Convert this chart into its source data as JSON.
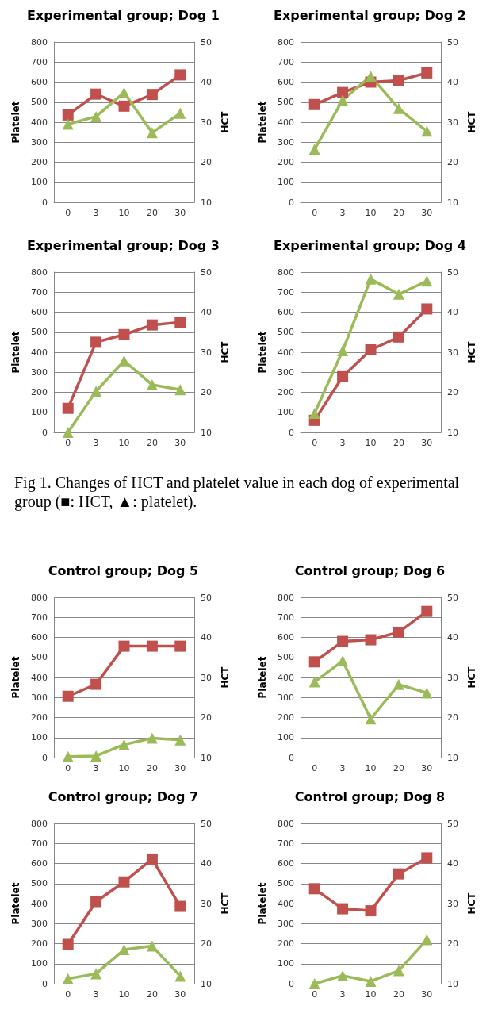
{
  "chart_data": [
    {
      "type": "line",
      "title": "Experimental group; Dog 1",
      "ylabel": "Platelet",
      "y2label": "HCT",
      "categories": [
        "0",
        "3",
        "10",
        "20",
        "30"
      ],
      "ylim": [
        0,
        800
      ],
      "yticks": [
        0,
        100,
        200,
        300,
        400,
        500,
        600,
        700,
        800
      ],
      "y2lim": [
        10,
        50
      ],
      "y2ticks": [
        10,
        20,
        30,
        40,
        50
      ],
      "grid": "y",
      "series": [
        {
          "color": "#c0504d",
          "axis": "y2",
          "marker": "square",
          "values": [
            31.8,
            37,
            34,
            36.9,
            41.8
          ]
        },
        {
          "color": "#9bbb59",
          "marker": "triangle",
          "values": [
            390,
            428,
            548,
            348,
            445
          ]
        }
      ]
    },
    {
      "type": "line",
      "title": "Experimental group; Dog 2",
      "ylabel": "Platelet",
      "y2label": "HCT",
      "categories": [
        "0",
        "3",
        "10",
        "20",
        "30"
      ],
      "ylim": [
        0,
        800
      ],
      "yticks": [
        0,
        100,
        200,
        300,
        400,
        500,
        600,
        700,
        800
      ],
      "y2lim": [
        10,
        50
      ],
      "y2ticks": [
        10,
        20,
        30,
        40,
        50
      ],
      "grid": "y",
      "series": [
        {
          "color": "#c0504d",
          "axis": "y2",
          "marker": "square",
          "values": [
            34.4,
            37.4,
            40,
            40.4,
            42.3
          ]
        },
        {
          "color": "#9bbb59",
          "marker": "triangle",
          "values": [
            265,
            510,
            630,
            468,
            355
          ]
        }
      ]
    },
    {
      "type": "line",
      "title": "Experimental group; Dog 3",
      "ylabel": "Platelet",
      "y2label": "HCT",
      "categories": [
        "0",
        "3",
        "10",
        "20",
        "30"
      ],
      "ylim": [
        0,
        800
      ],
      "yticks": [
        0,
        100,
        200,
        300,
        400,
        500,
        600,
        700,
        800
      ],
      "y2lim": [
        10,
        50
      ],
      "y2ticks": [
        10,
        20,
        30,
        40,
        50
      ],
      "grid": "y",
      "series": [
        {
          "color": "#c0504d",
          "axis": "y2",
          "marker": "square",
          "values": [
            16,
            32.5,
            34.4,
            36.8,
            37.5
          ]
        },
        {
          "color": "#9bbb59",
          "marker": "triangle",
          "values": [
            0,
            205,
            357,
            238,
            213
          ]
        }
      ]
    },
    {
      "type": "line",
      "title": "Experimental group; Dog 4",
      "ylabel": "Platelet",
      "y2label": "HCT",
      "categories": [
        "0",
        "3",
        "10",
        "20",
        "30"
      ],
      "ylim": [
        0,
        800
      ],
      "yticks": [
        0,
        100,
        200,
        300,
        400,
        500,
        600,
        700,
        800
      ],
      "y2lim": [
        10,
        50
      ],
      "y2ticks": [
        10,
        20,
        30,
        40,
        50
      ],
      "grid": "y",
      "annotations": [
        "Fig 1. Changes of HCT and platelet value in each dog of experimental group (■: HCT, ▲: platelet)."
      ],
      "series": [
        {
          "color": "#c0504d",
          "axis": "y2",
          "marker": "square",
          "values": [
            13,
            23.9,
            30.6,
            33.8,
            40.8
          ]
        },
        {
          "color": "#9bbb59",
          "marker": "triangle",
          "values": [
            95,
            408,
            765,
            690,
            755
          ]
        }
      ]
    },
    {
      "type": "line",
      "title": "Control group; Dog 5",
      "ylabel": "Platelet",
      "y2label": "HCT",
      "categories": [
        "0",
        "3",
        "10",
        "20",
        "30"
      ],
      "ylim": [
        0,
        800
      ],
      "yticks": [
        0,
        100,
        200,
        300,
        400,
        500,
        600,
        700,
        800
      ],
      "y2lim": [
        10,
        50
      ],
      "y2ticks": [
        10,
        20,
        30,
        40,
        50
      ],
      "grid": "y",
      "series": [
        {
          "color": "#c0504d",
          "axis": "y2",
          "marker": "square",
          "values": [
            25.3,
            28.3,
            37.8,
            37.8,
            37.8
          ]
        },
        {
          "color": "#9bbb59",
          "marker": "triangle",
          "values": [
            5,
            8,
            65,
            97,
            88
          ]
        }
      ]
    },
    {
      "type": "line",
      "title": "Control group; Dog 6",
      "ylabel": "Platelet",
      "y2label": "HCT",
      "categories": [
        "0",
        "3",
        "10",
        "20",
        "30"
      ],
      "ylim": [
        0,
        800
      ],
      "yticks": [
        0,
        100,
        200,
        300,
        400,
        500,
        600,
        700,
        800
      ],
      "y2lim": [
        10,
        50
      ],
      "y2ticks": [
        10,
        20,
        30,
        40,
        50
      ],
      "grid": "y",
      "series": [
        {
          "color": "#c0504d",
          "axis": "y2",
          "marker": "square",
          "values": [
            33.9,
            39,
            39.4,
            41.3,
            46.5
          ]
        },
        {
          "color": "#9bbb59",
          "marker": "triangle",
          "values": [
            378,
            483,
            193,
            365,
            323
          ]
        }
      ]
    },
    {
      "type": "line",
      "title": "Control group; Dog 7",
      "ylabel": "Platelet",
      "y2label": "HCT",
      "categories": [
        "0",
        "3",
        "10",
        "20",
        "30"
      ],
      "ylim": [
        0,
        800
      ],
      "yticks": [
        0,
        100,
        200,
        300,
        400,
        500,
        600,
        700,
        800
      ],
      "y2lim": [
        10,
        50
      ],
      "y2ticks": [
        10,
        20,
        30,
        40,
        50
      ],
      "grid": "y",
      "series": [
        {
          "color": "#c0504d",
          "axis": "y2",
          "marker": "square",
          "values": [
            19.8,
            30.5,
            35.4,
            41.1,
            29.3
          ]
        },
        {
          "color": "#9bbb59",
          "marker": "triangle",
          "values": [
            25,
            50,
            170,
            188,
            38
          ]
        }
      ]
    },
    {
      "type": "line",
      "title": "Control group; Dog 8",
      "ylabel": "Platelet",
      "y2label": "HCT",
      "categories": [
        "0",
        "3",
        "10",
        "20",
        "30"
      ],
      "ylim": [
        0,
        800
      ],
      "yticks": [
        0,
        100,
        200,
        300,
        400,
        500,
        600,
        700,
        800
      ],
      "y2lim": [
        10,
        50
      ],
      "y2ticks": [
        10,
        20,
        30,
        40,
        50
      ],
      "grid": "y",
      "series": [
        {
          "color": "#c0504d",
          "axis": "y2",
          "marker": "square",
          "values": [
            33.7,
            28.7,
            28.2,
            37.4,
            41.4
          ]
        },
        {
          "color": "#9bbb59",
          "marker": "triangle",
          "values": [
            0,
            40,
            12,
            65,
            220
          ]
        }
      ]
    }
  ]
}
